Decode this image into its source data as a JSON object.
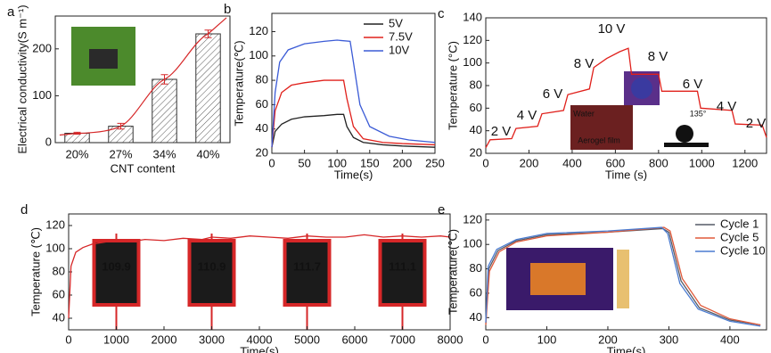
{
  "chart_data": [
    {
      "type": "bar",
      "panel_label": "a",
      "xlabel": "CNT content",
      "ylabel": "Electrical conductivity(S m⁻¹)",
      "categories": [
        "20%",
        "27%",
        "34%",
        "40%"
      ],
      "values": [
        20,
        35,
        135,
        232
      ],
      "errors": [
        2,
        6,
        10,
        8
      ],
      "color": "#ffffff",
      "error_color": "#d62728",
      "fit_color": "#d62728",
      "ylim": [
        0,
        270
      ],
      "yticks": [
        0,
        100,
        200
      ]
    },
    {
      "type": "line",
      "panel_label": "b",
      "xlabel": "Time(s)",
      "ylabel": "Temperature(℃)",
      "xlim": [
        0,
        250
      ],
      "xticks": [
        0,
        50,
        100,
        150,
        200,
        250
      ],
      "ylim": [
        20,
        135
      ],
      "yticks": [
        20,
        40,
        60,
        80,
        100,
        120
      ],
      "legend": "upper right",
      "series": [
        {
          "name": "5V",
          "color": "#222222",
          "x": [
            0,
            5,
            15,
            30,
            50,
            80,
            100,
            110,
            115,
            125,
            140,
            170,
            200,
            250
          ],
          "values": [
            25,
            38,
            44,
            48,
            50,
            51,
            52,
            52,
            42,
            33,
            29,
            27,
            26,
            25
          ]
        },
        {
          "name": "7.5V",
          "color": "#e0201b",
          "x": [
            0,
            5,
            15,
            30,
            50,
            80,
            110,
            115,
            125,
            140,
            170,
            200,
            250
          ],
          "values": [
            25,
            55,
            70,
            76,
            78,
            80,
            80,
            65,
            42,
            32,
            29,
            28,
            27
          ]
        },
        {
          "name": "10V",
          "color": "#3b5bd6",
          "x": [
            0,
            5,
            12,
            25,
            50,
            80,
            100,
            120,
            125,
            135,
            150,
            180,
            210,
            250
          ],
          "values": [
            25,
            70,
            95,
            105,
            110,
            112,
            113,
            112,
            95,
            60,
            42,
            34,
            31,
            29
          ]
        }
      ]
    },
    {
      "type": "line",
      "panel_label": "c",
      "xlabel": "Time (s)",
      "ylabel": "Temperature (°C)",
      "xlim": [
        0,
        1300
      ],
      "xticks": [
        0,
        200,
        400,
        600,
        800,
        1000,
        1200
      ],
      "ylim": [
        20,
        140
      ],
      "yticks": [
        20,
        40,
        60,
        80,
        100,
        120,
        140
      ],
      "annotations": [
        "2 V",
        "4 V",
        "6 V",
        "8 V",
        "10 V",
        "8 V",
        "6 V",
        "4 V",
        "2 V",
        "Water",
        "Aerogel film",
        "135°"
      ],
      "series": [
        {
          "name": null,
          "color": "#e0201b",
          "x": [
            0,
            20,
            120,
            140,
            240,
            260,
            360,
            380,
            480,
            500,
            560,
            620,
            660,
            675,
            800,
            815,
            980,
            995,
            1140,
            1155,
            1280,
            1300
          ],
          "values": [
            25,
            32,
            33,
            42,
            44,
            55,
            58,
            72,
            77,
            96,
            104,
            110,
            113,
            90,
            90,
            75,
            75,
            60,
            58,
            46,
            45,
            34
          ]
        }
      ]
    },
    {
      "type": "line",
      "panel_label": "d",
      "xlabel": "Time(s)",
      "ylabel": "Temperature (℃)",
      "xlim": [
        0,
        8000
      ],
      "xticks": [
        0,
        1000,
        2000,
        3000,
        4000,
        5000,
        6000,
        7000,
        8000
      ],
      "ylim": [
        30,
        130
      ],
      "yticks": [
        40,
        60,
        80,
        100,
        120
      ],
      "annotations": [
        "109.9",
        "110.9",
        "111.7",
        "111.1"
      ],
      "series": [
        {
          "name": null,
          "color": "#d62728",
          "x": [
            0,
            50,
            150,
            300,
            500,
            800,
            1000,
            1300,
            1600,
            2000,
            2400,
            2800,
            3000,
            3400,
            3800,
            4200,
            4600,
            5000,
            5400,
            5800,
            6200,
            6600,
            7000,
            7400,
            7800,
            8000
          ],
          "values": [
            40,
            85,
            97,
            101,
            104,
            106,
            107,
            106,
            108,
            107,
            109,
            108,
            110,
            109,
            111,
            110,
            109,
            111,
            110,
            110,
            112,
            110,
            111,
            110,
            111,
            110
          ]
        }
      ]
    },
    {
      "type": "line",
      "panel_label": "e",
      "xlabel": "Time(s)",
      "ylabel": "Temperature(℃)",
      "xlim": [
        0,
        460
      ],
      "xticks": [
        0,
        100,
        200,
        300,
        400
      ],
      "ylim": [
        30,
        125
      ],
      "yticks": [
        40,
        60,
        80,
        100,
        120
      ],
      "legend": "upper right",
      "series": [
        {
          "name": "Cycle 1",
          "color": "#555a66",
          "x": [
            0,
            5,
            20,
            50,
            100,
            200,
            290,
            300,
            320,
            350,
            400,
            450
          ],
          "values": [
            35,
            80,
            95,
            103,
            108,
            110,
            113,
            110,
            70,
            48,
            38,
            34
          ]
        },
        {
          "name": "Cycle 5",
          "color": "#e05a3a",
          "x": [
            0,
            6,
            22,
            50,
            100,
            200,
            292,
            302,
            322,
            352,
            400,
            450
          ],
          "values": [
            34,
            78,
            94,
            102,
            107,
            110,
            114,
            111,
            72,
            50,
            39,
            34
          ]
        },
        {
          "name": "Cycle 10",
          "color": "#4a7bd0",
          "x": [
            0,
            4,
            18,
            50,
            100,
            200,
            288,
            298,
            318,
            348,
            400,
            450
          ],
          "values": [
            36,
            82,
            96,
            104,
            109,
            111,
            114,
            109,
            68,
            47,
            37,
            33
          ]
        }
      ]
    }
  ]
}
